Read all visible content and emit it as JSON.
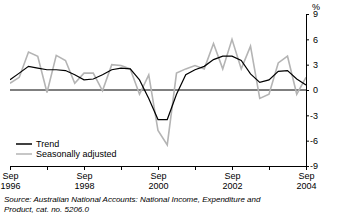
{
  "chart_data": {
    "type": "line",
    "ylabel": "%",
    "categories": [
      "Sep 1996",
      null,
      null,
      null,
      null,
      null,
      null,
      null,
      "Sep 1998",
      null,
      null,
      null,
      null,
      null,
      null,
      null,
      "Sep 2000",
      null,
      null,
      null,
      null,
      null,
      null,
      null,
      "Sep 2002",
      null,
      null,
      null,
      null,
      null,
      null,
      null,
      "Sep 2004"
    ],
    "series": [
      {
        "name": "Trend",
        "color": "#000000",
        "values": [
          1.2,
          2.0,
          2.8,
          2.6,
          2.4,
          2.4,
          2.3,
          1.8,
          1.2,
          1.3,
          1.8,
          2.4,
          2.6,
          2.5,
          1.2,
          -1.0,
          -3.5,
          -3.5,
          -0.5,
          1.8,
          2.4,
          2.8,
          3.6,
          4.0,
          4.0,
          3.5,
          1.9,
          0.9,
          1.2,
          2.2,
          2.3,
          1.3,
          0.6
        ]
      },
      {
        "name": "Seasonally adjusted",
        "color": "#b4b4b4",
        "values": [
          0.8,
          1.5,
          4.5,
          4.0,
          -0.3,
          4.1,
          3.5,
          0.8,
          2.0,
          2.0,
          -0.1,
          3.0,
          2.9,
          2.5,
          -0.5,
          1.8,
          -4.8,
          -6.5,
          2.0,
          2.5,
          2.9,
          2.5,
          5.5,
          2.5,
          6.0,
          2.5,
          5.2,
          -1.0,
          -0.5,
          3.2,
          4.0,
          -0.5,
          1.5
        ]
      }
    ],
    "ylim": [
      -9,
      9
    ],
    "yticks": [
      9,
      6,
      3,
      0,
      -3,
      -6,
      -9
    ],
    "grid": false,
    "legend": "lower left",
    "annotations": [
      "Source: Australian National Accounts: National Income, Expenditure and",
      "Product, cat. no. 5206.0"
    ]
  }
}
